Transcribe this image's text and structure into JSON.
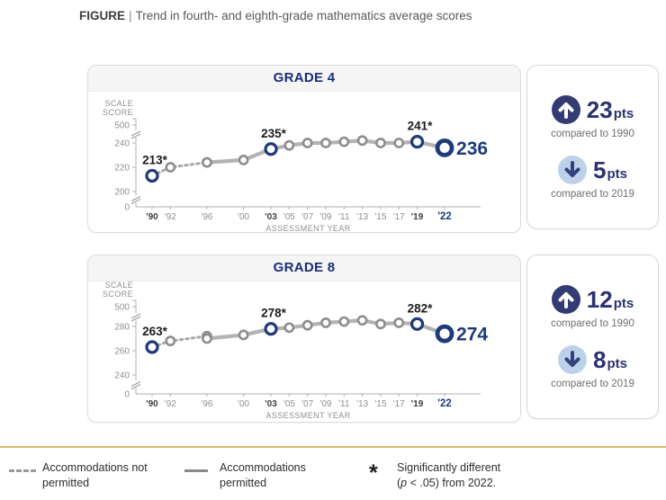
{
  "title": {
    "label": "FIGURE",
    "separator": "|",
    "text": "Trend in fourth- and eighth-grade mathematics average scores"
  },
  "colors": {
    "navy": "#1e3a7a",
    "header_navy": "#1b2d7a",
    "stat_circle_navy": "#343b74",
    "stat_light_blue": "#bdd2e9",
    "line_gray": "#b3b3b3",
    "dashed_gray": "#a8a8a8",
    "gold_rule": "#d8ba6b"
  },
  "chart_data": [
    {
      "type": "line",
      "title": "GRADE 4",
      "xlabel": "ASSESSMENT YEAR",
      "ylabel": "SCALE SCORE",
      "ylim": [
        0,
        500
      ],
      "y_ticks": [
        500,
        240,
        220,
        200,
        0
      ],
      "x_years": [
        1990,
        1992,
        1996,
        2000,
        2003,
        2005,
        2007,
        2009,
        2011,
        2013,
        2015,
        2017,
        2019,
        2022
      ],
      "x_tick_labels": [
        "'90",
        "'92",
        "'96",
        "'00",
        "'03",
        "'05",
        "'07",
        "'09",
        "'11",
        "'13",
        "'15",
        "'17",
        "'19",
        "'22"
      ],
      "series": [
        {
          "name": "Accommodations not permitted",
          "style": "dashed",
          "x": [
            1990,
            1992,
            1996
          ],
          "y": [
            213,
            220,
            224
          ]
        },
        {
          "name": "Accommodations permitted",
          "style": "solid",
          "x": [
            1996,
            2000,
            2003,
            2005,
            2007,
            2009,
            2011,
            2013,
            2015,
            2017,
            2019,
            2022
          ],
          "y": [
            224,
            226,
            235,
            238,
            240,
            240,
            241,
            242,
            240,
            240,
            241,
            236
          ]
        }
      ],
      "highlighted_points": [
        {
          "x": 1990,
          "y": 213,
          "label": "213*"
        },
        {
          "x": 2003,
          "y": 235,
          "label": "235*"
        },
        {
          "x": 2019,
          "y": 241,
          "label": "241*"
        },
        {
          "x": 2022,
          "y": 236,
          "label": "236",
          "emphasis": true
        }
      ]
    },
    {
      "type": "line",
      "title": "GRADE 8",
      "xlabel": "ASSESSMENT YEAR",
      "ylabel": "SCALE SCORE",
      "ylim": [
        0,
        500
      ],
      "y_ticks": [
        500,
        280,
        260,
        240,
        0
      ],
      "x_years": [
        1990,
        1992,
        1996,
        2000,
        2003,
        2005,
        2007,
        2009,
        2011,
        2013,
        2015,
        2017,
        2019,
        2022
      ],
      "x_tick_labels": [
        "'90",
        "'92",
        "'96",
        "'00",
        "'03",
        "'05",
        "'07",
        "'09",
        "'11",
        "'13",
        "'15",
        "'17",
        "'19",
        "'22"
      ],
      "series": [
        {
          "name": "Accommodations not permitted",
          "style": "dashed",
          "x": [
            1990,
            1992,
            1996
          ],
          "y": [
            263,
            268,
            272
          ]
        },
        {
          "name": "Accommodations permitted",
          "style": "solid",
          "x": [
            1996,
            2000,
            2003,
            2005,
            2007,
            2009,
            2011,
            2013,
            2015,
            2017,
            2019,
            2022
          ],
          "y": [
            270,
            273,
            278,
            279,
            281,
            283,
            284,
            285,
            282,
            283,
            282,
            274
          ]
        }
      ],
      "highlighted_points": [
        {
          "x": 1990,
          "y": 263,
          "label": "263*"
        },
        {
          "x": 2003,
          "y": 278,
          "label": "278*"
        },
        {
          "x": 2019,
          "y": 282,
          "label": "282*"
        },
        {
          "x": 2022,
          "y": 274,
          "label": "274",
          "emphasis": true
        }
      ]
    }
  ],
  "stats": [
    {
      "up": {
        "value": "23",
        "unit": "pts",
        "caption": "compared to 1990"
      },
      "down": {
        "value": "5",
        "unit": "pts",
        "caption": "compared to 2019"
      }
    },
    {
      "up": {
        "value": "12",
        "unit": "pts",
        "caption": "compared to 1990"
      },
      "down": {
        "value": "8",
        "unit": "pts",
        "caption": "compared to 2019"
      }
    }
  ],
  "legend": {
    "items": [
      {
        "label": "Accommodations not permitted"
      },
      {
        "label": "Accommodations permitted"
      },
      {
        "symbol": "*",
        "line1": "Significantly different",
        "open": "(",
        "p": "p",
        "rest": " < .05) from 2022."
      }
    ]
  }
}
